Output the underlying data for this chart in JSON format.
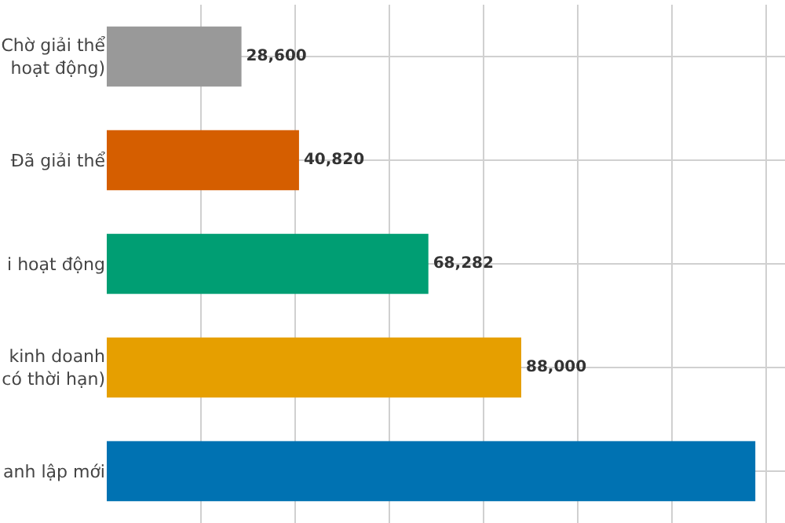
{
  "chart_data": {
    "type": "bar",
    "orientation": "horizontal",
    "categories": [
      "Chờ giải thể\nhoạt động)",
      "Đã giải thể",
      "i hoạt động",
      "kinh doanh\ncó thời hạn)",
      "anh lập mới"
    ],
    "values": [
      28600,
      40820,
      68282,
      88000,
      137700
    ],
    "colors": [
      "#999999",
      "#d55e00",
      "#009e73",
      "#e69f00",
      "#0072b2"
    ],
    "value_labels": [
      "28,600",
      "40,820",
      "68,282",
      "88,000",
      null
    ],
    "xlim": [
      0,
      144000
    ],
    "grid": true,
    "tick_labels": "y",
    "legend": false
  }
}
